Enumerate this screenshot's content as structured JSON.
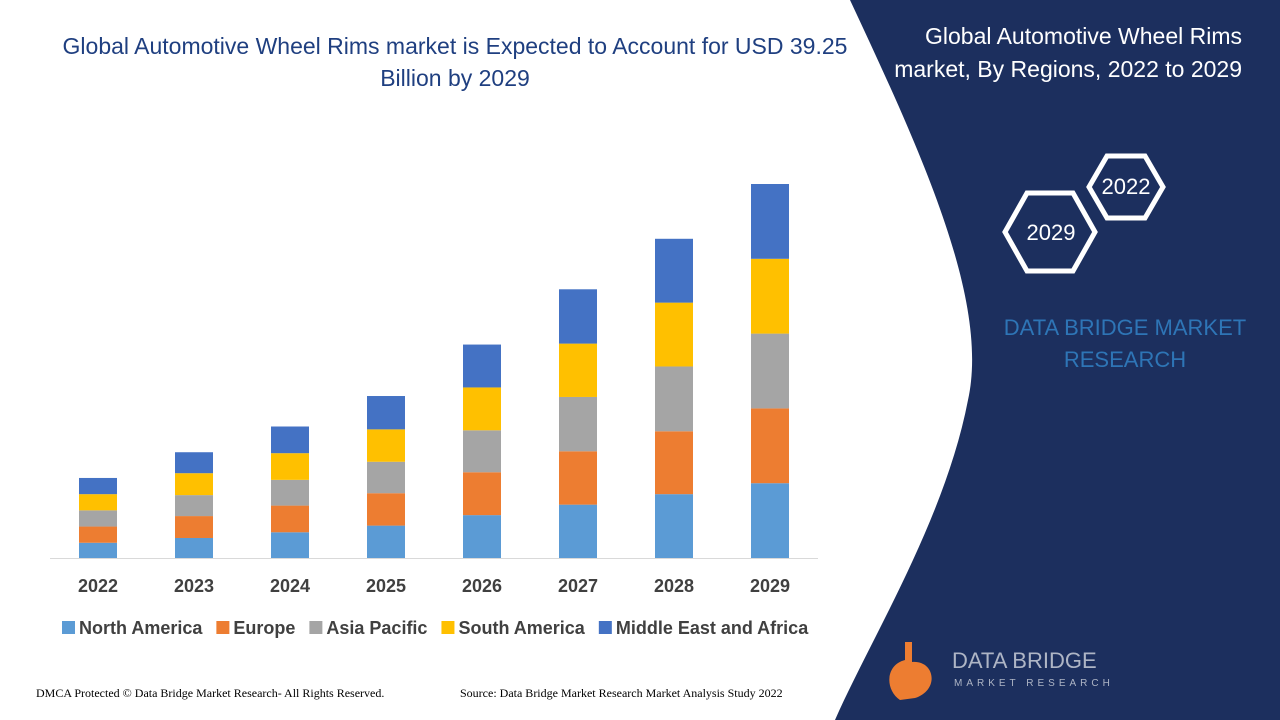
{
  "chart_data": {
    "type": "stacked_bar",
    "title": "Global Automotive Wheel Rims market is Expected to Account for USD 39.25 Billion by 2029",
    "categories": [
      "2022",
      "2023",
      "2024",
      "2025",
      "2026",
      "2027",
      "2028",
      "2029"
    ],
    "series": [
      {
        "name": "North America",
        "color": "#5b9bd5",
        "values": [
          1.6,
          2.1,
          2.7,
          3.4,
          4.5,
          5.6,
          6.7,
          7.85
        ]
      },
      {
        "name": "Europe",
        "color": "#ed7d31",
        "values": [
          1.7,
          2.3,
          2.8,
          3.4,
          4.5,
          5.6,
          6.6,
          7.85
        ]
      },
      {
        "name": "Asia Pacific",
        "color": "#a5a5a5",
        "values": [
          1.7,
          2.2,
          2.7,
          3.3,
          4.4,
          5.7,
          6.8,
          7.85
        ]
      },
      {
        "name": "South America",
        "color": "#ffc000",
        "values": [
          1.7,
          2.3,
          2.8,
          3.4,
          4.5,
          5.6,
          6.7,
          7.85
        ]
      },
      {
        "name": "Middle East and Africa",
        "color": "#4472c4",
        "values": [
          1.7,
          2.2,
          2.8,
          3.5,
          4.5,
          5.7,
          6.7,
          7.85
        ]
      }
    ],
    "legend": "bottom"
  },
  "panel": {
    "heading": "Global Automotive Wheel Rims market, By Regions, 2022 to 2029",
    "hex_a": "2022",
    "hex_b": "2029",
    "brand": "DATA BRIDGE MARKET RESEARCH"
  },
  "logo": {
    "name": "DATA BRIDGE",
    "tagline": "MARKET RESEARCH"
  },
  "footer": {
    "left": "DMCA Protected © Data Bridge Market Research- All Rights Reserved.",
    "right": "Source: Data Bridge Market Research Market Analysis Study 2022"
  }
}
